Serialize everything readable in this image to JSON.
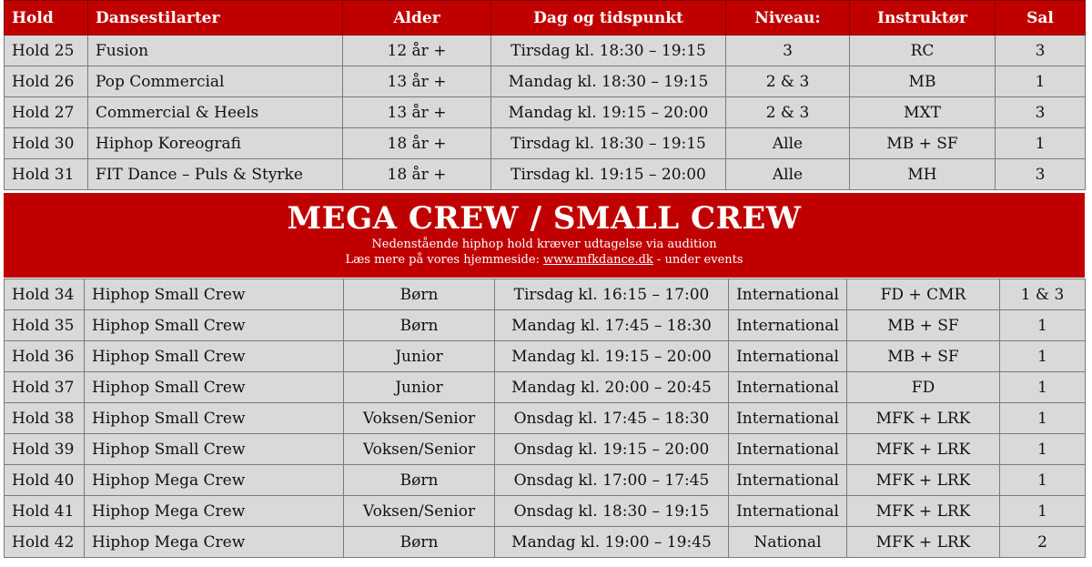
{
  "header": {
    "hold": "Hold",
    "style": "Dansestilarter",
    "age": "Alder",
    "time": "Dag og tidspunkt",
    "level": "Niveau:",
    "instructor": "Instruktør",
    "room": "Sal"
  },
  "top_rows": [
    {
      "hold": "Hold 25",
      "style": "Fusion",
      "age": "12 år +",
      "time": "Tirsdag  kl. 18:30 – 19:15",
      "level": "3",
      "instructor": "RC",
      "room": "3"
    },
    {
      "hold": "Hold 26",
      "style": "Pop Commercial",
      "age": "13 år +",
      "time": "Mandag kl. 18:30 – 19:15",
      "level": "2 & 3",
      "instructor": "MB",
      "room": "1"
    },
    {
      "hold": "Hold 27",
      "style": "Commercial & Heels",
      "age": "13 år +",
      "time": "Mandag kl. 19:15 – 20:00",
      "level": "2 & 3",
      "instructor": "MXT",
      "room": "3"
    },
    {
      "hold": "Hold 30",
      "style": "Hiphop Koreografi",
      "age": "18 år +",
      "time": "Tirsdag  kl. 18:30 – 19:15",
      "level": "Alle",
      "instructor": "MB + SF",
      "room": "1"
    },
    {
      "hold": "Hold 31",
      "style": "FIT Dance – Puls & Styrke",
      "age": "18 år +",
      "time": "Tirsdag  kl. 19:15 – 20:00",
      "level": "Alle",
      "instructor": "MH",
      "room": "3"
    }
  ],
  "banner": {
    "title": "MEGA CREW / SMALL CREW",
    "line1": "Nedenstående hiphop hold kræver udtagelse via audition",
    "line2_prefix": "Læs mere på vores hjemmeside: ",
    "link": "www.mfkdance.dk",
    "line2_suffix": "  - under events"
  },
  "bottom_rows": [
    {
      "hold": "Hold 34",
      "style": "Hiphop Small Crew",
      "age": "Børn",
      "time": "Tirsdag  kl. 16:15 – 17:00",
      "level": "International",
      "instructor": "FD + CMR",
      "room": "1 & 3"
    },
    {
      "hold": "Hold 35",
      "style": "Hiphop Small Crew",
      "age": "Børn",
      "time": "Mandag kl. 17:45 – 18:30",
      "level": "International",
      "instructor": "MB + SF",
      "room": "1"
    },
    {
      "hold": "Hold 36",
      "style": "Hiphop Small Crew",
      "age": "Junior",
      "time": "Mandag kl. 19:15 – 20:00",
      "level": "International",
      "instructor": "MB + SF",
      "room": "1"
    },
    {
      "hold": "Hold 37",
      "style": "Hiphop Small Crew",
      "age": "Junior",
      "time": "Mandag  kl. 20:00 – 20:45",
      "level": "International",
      "instructor": "FD",
      "room": "1"
    },
    {
      "hold": "Hold 38",
      "style": "Hiphop Small Crew",
      "age": "Voksen/Senior",
      "time": "Onsdag  kl. 17:45 – 18:30",
      "level": "International",
      "instructor": "MFK + LRK",
      "room": "1"
    },
    {
      "hold": "Hold 39",
      "style": "Hiphop Small Crew",
      "age": "Voksen/Senior",
      "time": "Onsdag  kl. 19:15 – 20:00",
      "level": "International",
      "instructor": "MFK + LRK",
      "room": "1"
    },
    {
      "hold": "Hold 40",
      "style": "Hiphop Mega Crew",
      "age": "Børn",
      "time": "Onsdag  kl. 17:00 – 17:45",
      "level": "International",
      "instructor": "MFK + LRK",
      "room": "1"
    },
    {
      "hold": "Hold 41",
      "style": "Hiphop Mega Crew",
      "age": "Voksen/Senior",
      "time": "Onsdag  kl. 18:30 – 19:15",
      "level": "International",
      "instructor": "MFK + LRK",
      "room": "1"
    },
    {
      "hold": "Hold 42",
      "style": "Hiphop Mega Crew",
      "age": "Børn",
      "time": "Mandag kl. 19:00 – 19:45",
      "level": "National",
      "instructor": "MFK + LRK",
      "room": "2"
    }
  ]
}
